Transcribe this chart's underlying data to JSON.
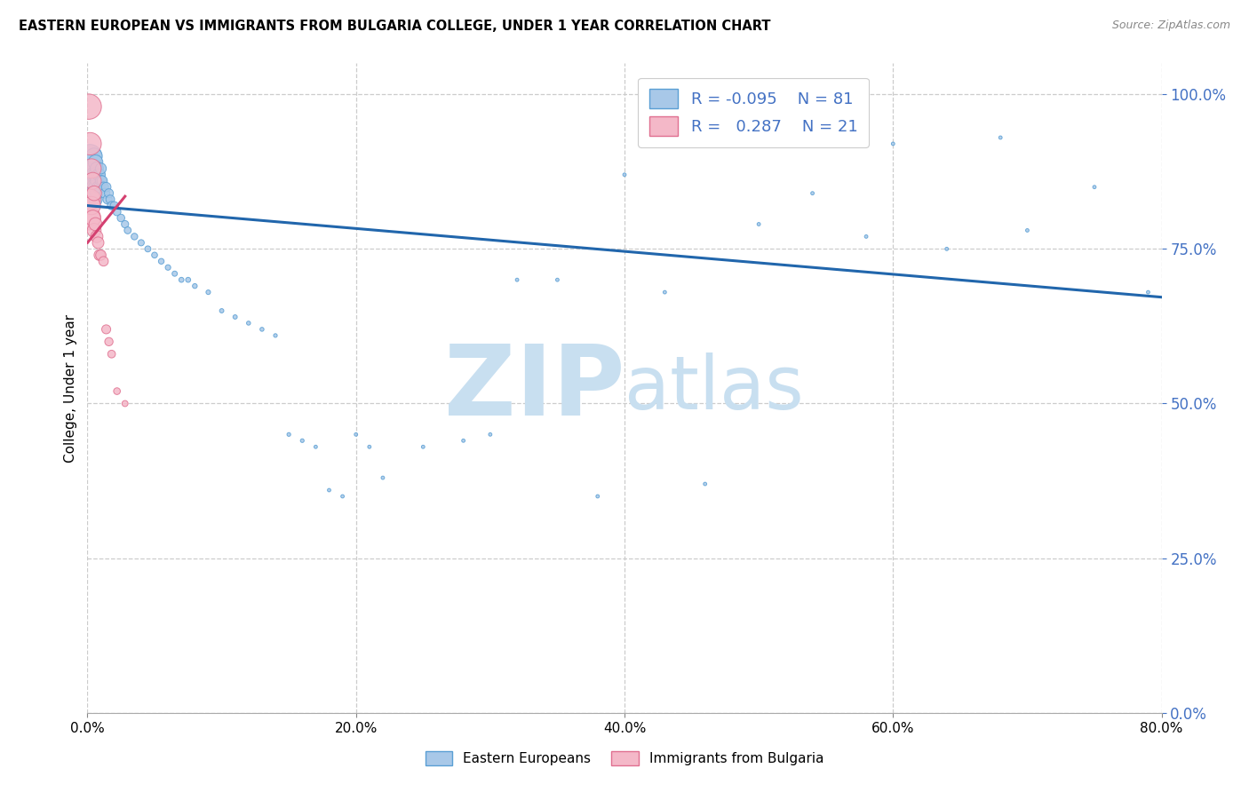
{
  "title": "EASTERN EUROPEAN VS IMMIGRANTS FROM BULGARIA COLLEGE, UNDER 1 YEAR CORRELATION CHART",
  "source": "Source: ZipAtlas.com",
  "ylabel_label": "College, Under 1 year",
  "legend_label_blue": "Eastern Europeans",
  "legend_label_pink": "Immigrants from Bulgaria",
  "R_blue": -0.095,
  "N_blue": 81,
  "R_pink": 0.287,
  "N_pink": 21,
  "blue_color": "#a8c8e8",
  "blue_edge_color": "#5a9fd4",
  "pink_color": "#f4b8c8",
  "pink_edge_color": "#e07090",
  "blue_line_color": "#2166ac",
  "pink_line_color": "#d44070",
  "watermark_color": "#c8dff0",
  "xmin": 0.0,
  "xmax": 0.8,
  "ymin": 0.0,
  "ymax": 1.05,
  "blue_x": [
    0.001,
    0.001,
    0.002,
    0.002,
    0.003,
    0.003,
    0.003,
    0.004,
    0.004,
    0.004,
    0.005,
    0.005,
    0.005,
    0.006,
    0.006,
    0.006,
    0.006,
    0.007,
    0.007,
    0.007,
    0.008,
    0.008,
    0.009,
    0.009,
    0.01,
    0.01,
    0.011,
    0.012,
    0.013,
    0.014,
    0.015,
    0.016,
    0.017,
    0.018,
    0.02,
    0.022,
    0.025,
    0.028,
    0.03,
    0.035,
    0.04,
    0.045,
    0.05,
    0.055,
    0.06,
    0.065,
    0.07,
    0.075,
    0.08,
    0.09,
    0.1,
    0.11,
    0.12,
    0.13,
    0.14,
    0.15,
    0.16,
    0.17,
    0.18,
    0.19,
    0.2,
    0.21,
    0.22,
    0.25,
    0.28,
    0.3,
    0.32,
    0.35,
    0.38,
    0.4,
    0.43,
    0.46,
    0.5,
    0.54,
    0.58,
    0.6,
    0.64,
    0.68,
    0.7,
    0.75,
    0.79
  ],
  "blue_y": [
    0.88,
    0.86,
    0.9,
    0.87,
    0.89,
    0.87,
    0.85,
    0.88,
    0.86,
    0.84,
    0.9,
    0.87,
    0.85,
    0.89,
    0.87,
    0.85,
    0.83,
    0.88,
    0.86,
    0.84,
    0.87,
    0.85,
    0.87,
    0.85,
    0.88,
    0.86,
    0.86,
    0.85,
    0.84,
    0.85,
    0.83,
    0.84,
    0.83,
    0.82,
    0.82,
    0.81,
    0.8,
    0.79,
    0.78,
    0.77,
    0.76,
    0.75,
    0.74,
    0.73,
    0.72,
    0.71,
    0.7,
    0.7,
    0.69,
    0.68,
    0.65,
    0.64,
    0.63,
    0.62,
    0.61,
    0.45,
    0.44,
    0.43,
    0.36,
    0.35,
    0.45,
    0.43,
    0.38,
    0.43,
    0.44,
    0.45,
    0.7,
    0.7,
    0.35,
    0.87,
    0.68,
    0.37,
    0.79,
    0.84,
    0.77,
    0.92,
    0.75,
    0.93,
    0.78,
    0.85,
    0.68
  ],
  "blue_sizes": [
    300,
    260,
    240,
    210,
    190,
    170,
    155,
    145,
    135,
    125,
    115,
    108,
    100,
    95,
    90,
    85,
    80,
    76,
    72,
    68,
    65,
    62,
    58,
    55,
    52,
    50,
    47,
    44,
    42,
    39,
    37,
    35,
    33,
    31,
    29,
    27,
    25,
    23,
    21,
    19,
    17,
    16,
    15,
    14,
    13,
    12,
    11,
    11,
    10,
    9,
    8,
    8,
    7,
    7,
    6,
    6,
    6,
    5,
    5,
    5,
    5,
    5,
    5,
    5,
    5,
    5,
    5,
    5,
    5,
    5,
    5,
    5,
    5,
    5,
    5,
    5,
    5,
    5,
    5,
    5,
    5
  ],
  "pink_x": [
    0.001,
    0.001,
    0.002,
    0.002,
    0.003,
    0.003,
    0.004,
    0.004,
    0.005,
    0.005,
    0.006,
    0.007,
    0.008,
    0.009,
    0.01,
    0.012,
    0.014,
    0.016,
    0.018,
    0.022,
    0.028
  ],
  "pink_y": [
    0.98,
    0.8,
    0.92,
    0.83,
    0.88,
    0.82,
    0.86,
    0.8,
    0.84,
    0.78,
    0.79,
    0.77,
    0.76,
    0.74,
    0.74,
    0.73,
    0.62,
    0.6,
    0.58,
    0.52,
    0.5
  ],
  "pink_sizes": [
    280,
    250,
    220,
    190,
    165,
    145,
    125,
    108,
    95,
    85,
    75,
    65,
    58,
    52,
    47,
    40,
    35,
    30,
    26,
    20,
    16
  ],
  "blue_trend_x": [
    0.0,
    0.8
  ],
  "blue_trend_y": [
    0.82,
    0.672
  ],
  "pink_trend_x": [
    0.0,
    0.028
  ],
  "pink_trend_y": [
    0.76,
    0.835
  ]
}
